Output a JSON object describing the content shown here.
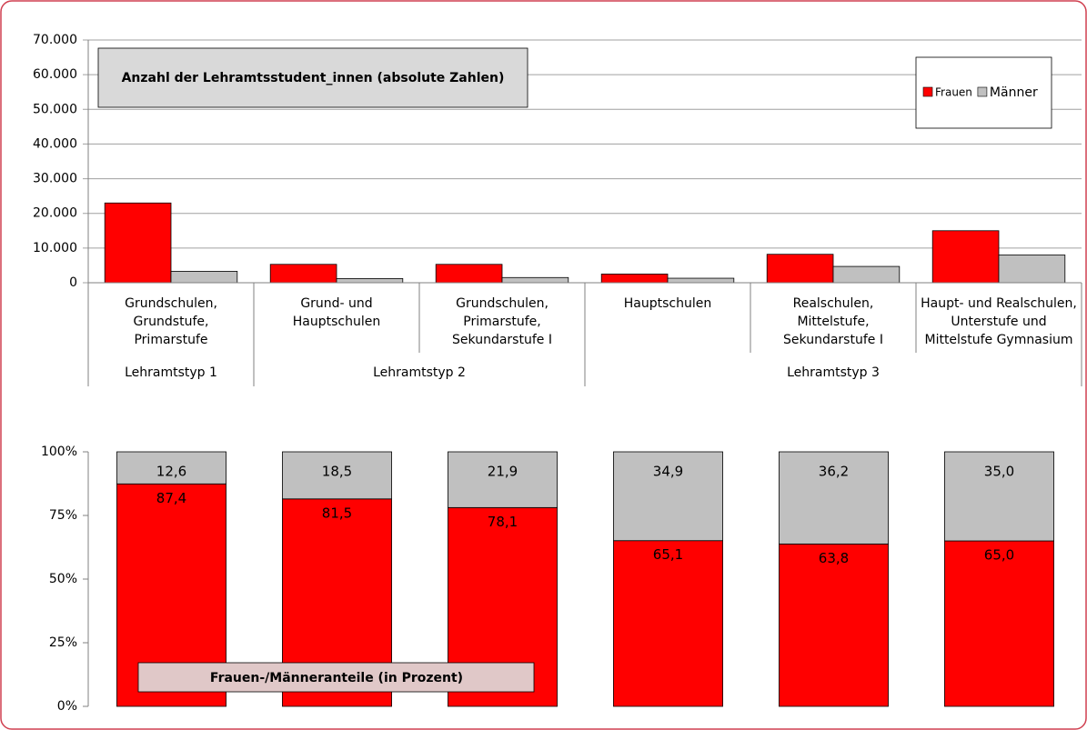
{
  "chart_data": [
    {
      "type": "bar",
      "title": "Anzahl der Lehramtsstudent_innen  (absolute Zahlen)",
      "categories": [
        "Grundschulen,\nGrundstufe,\nPrimarstufe",
        "Grund- und\nHauptschulen",
        "Grundschulen,\nPrimarstufe,\nSekundarstufe I",
        "Hauptschulen",
        "Realschulen,\nMittelstufe,\nSekundarstufe I",
        "Haupt- und Realschulen,\nUnterstufe und\nMittelstufe Gymnasium"
      ],
      "groups": [
        {
          "label": "Lehramtstyp 1",
          "size": 1
        },
        {
          "label": "Lehramtstyp 2",
          "size": 2
        },
        {
          "label": "Lehramtstyp 3",
          "size": 3
        }
      ],
      "series": [
        {
          "name": "Frauen",
          "color": "#ff0000",
          "values": [
            23000,
            5300,
            5300,
            2500,
            8200,
            15000
          ]
        },
        {
          "name": "Männer",
          "color": "#c0c0c0",
          "values": [
            3300,
            1200,
            1500,
            1300,
            4700,
            8000
          ]
        }
      ],
      "ylim": [
        0,
        70000
      ],
      "yticks": [
        0,
        {
          "value": 10000,
          "label": "10.000"
        },
        {
          "value": 20000,
          "label": "20.000"
        },
        {
          "value": 30000,
          "label": "30.000"
        },
        {
          "value": 40000,
          "label": "40.000"
        },
        {
          "value": 50000,
          "label": "50.000"
        },
        {
          "value": 60000,
          "label": "60.000"
        },
        {
          "value": 70000,
          "label": "70.000"
        }
      ],
      "grid": true,
      "legend": "top-right"
    },
    {
      "type": "stacked_bar",
      "title": "Frauen-/Männeranteile (in Prozent)",
      "series": [
        {
          "color": "#ff0000",
          "values": [
            87.4,
            81.5,
            78.1,
            65.1,
            63.8,
            65.0
          ],
          "value_labels": [
            "87,4",
            "81,5",
            "78,1",
            "65,1",
            "63,8",
            "65,0"
          ]
        },
        {
          "color": "#c0c0c0",
          "values": [
            12.6,
            18.5,
            21.9,
            34.9,
            36.2,
            35.0
          ],
          "value_labels": [
            "12,6",
            "18,5",
            "21,9",
            "34,9",
            "36,2",
            "35,0"
          ]
        }
      ],
      "ylim": [
        0,
        100
      ],
      "yticks": [
        {
          "value": 0,
          "label": "0%"
        },
        {
          "value": 25,
          "label": "25%"
        },
        {
          "value": 50,
          "label": "50%"
        },
        {
          "value": 75,
          "label": "75%"
        },
        {
          "value": 100,
          "label": "100%"
        }
      ],
      "grid": false
    }
  ]
}
